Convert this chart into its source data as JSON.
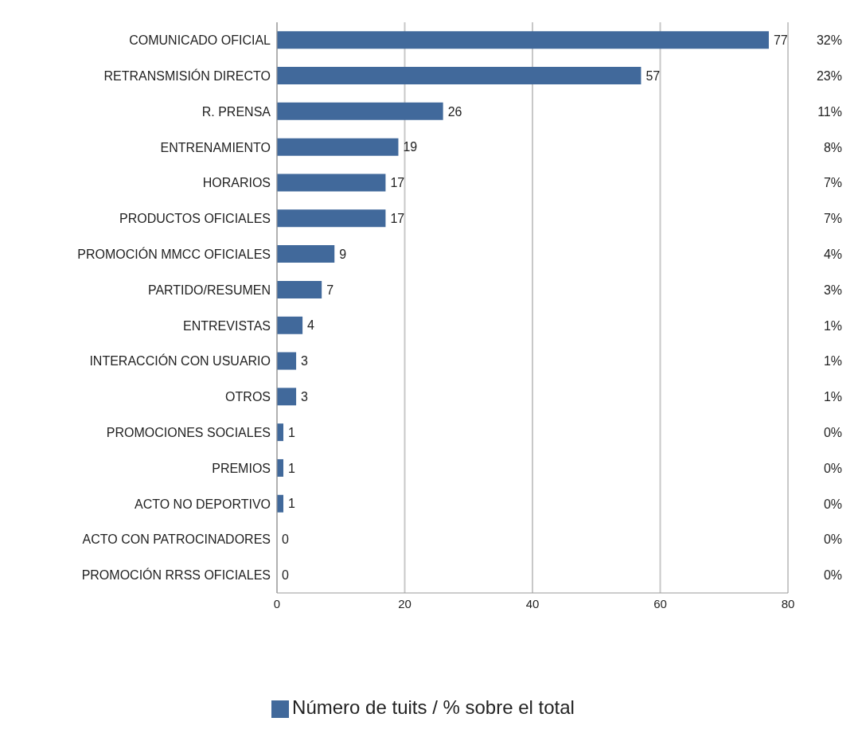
{
  "chart_data": {
    "type": "bar",
    "orientation": "horizontal",
    "categories": [
      "COMUNICADO OFICIAL",
      "RETRANSMISIÓN DIRECTO",
      "R. PRENSA",
      "ENTRENAMIENTO",
      "HORARIOS",
      "PRODUCTOS OFICIALES",
      "PROMOCIÓN MMCC OFICIALES",
      "PARTIDO/RESUMEN",
      "ENTREVISTAS",
      "INTERACCIÓN CON USUARIO",
      "OTROS",
      "PROMOCIONES SOCIALES",
      "PREMIOS",
      "ACTO NO DEPORTIVO",
      "ACTO CON PATROCINADORES",
      "PROMOCIÓN RRSS OFICIALES"
    ],
    "series": [
      {
        "name": "Número de tuits / % sobre el total",
        "color": "#41699b",
        "values": [
          77,
          57,
          26,
          19,
          17,
          17,
          9,
          7,
          4,
          3,
          3,
          1,
          1,
          1,
          0,
          0
        ]
      }
    ],
    "xlim": [
      0,
      80
    ],
    "xticks": [
      0,
      20,
      40,
      60,
      80
    ],
    "grid": "x",
    "data_labels": true,
    "legend": "bottom",
    "annotations": [
      "32%",
      "23%",
      "11%",
      "8%",
      "7%",
      "7%",
      "4%",
      "3%",
      "1%",
      "1%",
      "1%",
      "0%",
      "0%",
      "0%",
      "0%",
      "0%"
    ]
  }
}
